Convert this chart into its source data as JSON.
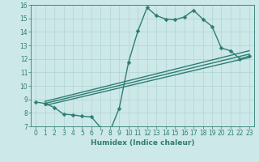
{
  "xlabel": "Humidex (Indice chaleur)",
  "bg_color": "#cde8e8",
  "line_color": "#2e7d74",
  "grid_color": "#afd4d0",
  "xlim": [
    -0.5,
    23.5
  ],
  "ylim": [
    7,
    16
  ],
  "xticks": [
    0,
    1,
    2,
    3,
    4,
    5,
    6,
    7,
    8,
    9,
    10,
    11,
    12,
    13,
    14,
    15,
    16,
    17,
    18,
    19,
    20,
    21,
    22,
    23
  ],
  "yticks": [
    7,
    8,
    9,
    10,
    11,
    12,
    13,
    14,
    15,
    16
  ],
  "line1_x": [
    0,
    1,
    2,
    3,
    4,
    5,
    6,
    7,
    8,
    9,
    10,
    11,
    12,
    13,
    14,
    15,
    16,
    17,
    18,
    19,
    20,
    21,
    22,
    23
  ],
  "line1_y": [
    8.8,
    8.7,
    8.4,
    7.9,
    7.85,
    7.75,
    7.7,
    6.9,
    6.65,
    8.35,
    11.75,
    14.05,
    15.8,
    15.2,
    14.95,
    14.9,
    15.1,
    15.6,
    14.95,
    14.4,
    12.8,
    12.6,
    12.0,
    12.2
  ],
  "trend_lines": [
    {
      "x": [
        1,
        23
      ],
      "y": [
        8.85,
        12.6
      ]
    },
    {
      "x": [
        1,
        23
      ],
      "y": [
        8.7,
        12.35
      ]
    },
    {
      "x": [
        1,
        23
      ],
      "y": [
        8.55,
        12.1
      ]
    }
  ],
  "markersize": 2.5,
  "linewidth": 1.0,
  "tick_fontsize": 5.5,
  "xlabel_fontsize": 6.5
}
